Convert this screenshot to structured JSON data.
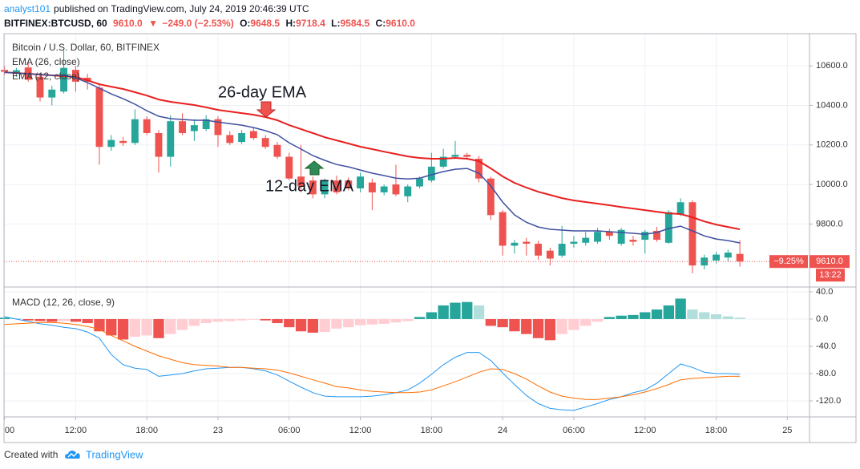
{
  "header": {
    "author": "analyst101",
    "published": "published on TradingView.com, July 24, 2019 20:46:39 UTC",
    "symbol": "BITFINEX:BTCUSD, 60",
    "last": "9610.0",
    "direction": "▼",
    "change": "−249.0 (−2.53%)",
    "ohlc": [
      {
        "label": "O:",
        "value": "9648.5"
      },
      {
        "label": "H:",
        "value": "9718.4"
      },
      {
        "label": "L:",
        "value": "9584.5"
      },
      {
        "label": "C:",
        "value": "9610.0"
      }
    ]
  },
  "footer": {
    "created": "Created with",
    "brand": "TradingView"
  },
  "chart_data": [
    {
      "type": "candlestick",
      "title": "Bitcoin / U.S. Dollar, 60, BITFINEX",
      "open": [
        10580,
        10560,
        10592,
        10545,
        10440,
        10470,
        10580,
        10540,
        10490,
        10190,
        10220,
        10210,
        10330,
        10260,
        10140,
        10320,
        10270,
        10280,
        10330,
        10250,
        10215,
        10270,
        10235,
        10200,
        10140,
        10040,
        10020,
        9950,
        10020,
        10020,
        9980,
        10010,
        9960,
        10000,
        9940,
        9990,
        10020,
        10090,
        10140,
        10150,
        10130,
        10030,
        9860,
        9690,
        9710,
        9700,
        9665,
        9640,
        9700,
        9705,
        9710,
        9760,
        9700,
        9720,
        9720,
        9765,
        9705,
        9850,
        9910,
        9590,
        9615,
        9630,
        9648.5
      ],
      "high": [
        10600,
        10590,
        10615,
        10560,
        10500,
        10680,
        10600,
        10560,
        10510,
        10250,
        10240,
        10380,
        10345,
        10275,
        10350,
        10360,
        10330,
        10350,
        10345,
        10270,
        10275,
        10290,
        10250,
        10215,
        10160,
        10200,
        10040,
        10030,
        10045,
        10035,
        10060,
        10030,
        10000,
        10100,
        10000,
        10040,
        10160,
        10180,
        10220,
        10160,
        10145,
        10040,
        9870,
        9720,
        9730,
        9715,
        9680,
        9790,
        9740,
        9760,
        9780,
        9775,
        9780,
        9740,
        9770,
        9785,
        9870,
        9930,
        9920,
        9645,
        9660,
        9670,
        9718.4
      ],
      "low": [
        10555,
        10545,
        10520,
        10420,
        10400,
        10460,
        10470,
        10480,
        10100,
        10170,
        10195,
        10200,
        10250,
        10060,
        10090,
        10250,
        10220,
        10270,
        10190,
        10200,
        10205,
        10225,
        10180,
        10130,
        10020,
        9960,
        9930,
        9930,
        9950,
        9970,
        9960,
        9870,
        9945,
        9940,
        9910,
        9980,
        10010,
        10080,
        10130,
        10130,
        10010,
        9820,
        9640,
        9650,
        9640,
        9620,
        9590,
        9630,
        9680,
        9690,
        9700,
        9720,
        9690,
        9690,
        9650,
        9710,
        9700,
        9840,
        9550,
        9570,
        9600,
        9610,
        9584.5
      ],
      "close": [
        10570,
        10578,
        10530,
        10440,
        10480,
        10590,
        10520,
        10520,
        10190,
        10225,
        10210,
        10330,
        10260,
        10140,
        10320,
        10260,
        10300,
        10330,
        10250,
        10210,
        10260,
        10235,
        10190,
        10140,
        10030,
        9990,
        9950,
        10020,
        9960,
        9980,
        10040,
        9960,
        9990,
        9950,
        9990,
        10030,
        10090,
        10140,
        10150,
        10140,
        10030,
        9845,
        9690,
        9705,
        9700,
        9640,
        9625,
        9700,
        9710,
        9730,
        9760,
        9740,
        9770,
        9710,
        9760,
        9720,
        9860,
        9910,
        9590,
        9630,
        9645,
        9655,
        9610
      ],
      "up_color": "#26a69a",
      "down_color": "#ef5350",
      "lines": [
        {
          "name": "EMA (26, close)",
          "color": "#e8201f",
          "values": [
            10568,
            10564,
            10560,
            10556,
            10552,
            10548,
            10544,
            10527,
            10507,
            10495,
            10483,
            10467,
            10450,
            10430,
            10418,
            10410,
            10402,
            10390,
            10377,
            10369,
            10361,
            10353,
            10341,
            10325,
            10300,
            10280,
            10260,
            10239,
            10223,
            10207,
            10191,
            10179,
            10166,
            10154,
            10142,
            10134,
            10130,
            10130,
            10134,
            10130,
            10118,
            10081,
            10041,
            10008,
            9984,
            9963,
            9947,
            9931,
            9919,
            9911,
            9903,
            9895,
            9886,
            9878,
            9870,
            9862,
            9854,
            9850,
            9834,
            9813,
            9797,
            9785,
            9773
          ]
        },
        {
          "name": "EMA (12, close)",
          "color": "#3f4fa0",
          "values": [
            10568,
            10564,
            10560,
            10556,
            10552,
            10552,
            10540,
            10515,
            10487,
            10458,
            10434,
            10406,
            10373,
            10345,
            10333,
            10329,
            10325,
            10325,
            10316,
            10308,
            10300,
            10288,
            10272,
            10252,
            10211,
            10179,
            10146,
            10122,
            10101,
            10089,
            10073,
            10057,
            10045,
            10032,
            10028,
            10032,
            10049,
            10065,
            10077,
            10081,
            10057,
            9992,
            9911,
            9846,
            9809,
            9785,
            9773,
            9769,
            9765,
            9765,
            9765,
            9761,
            9757,
            9753,
            9748,
            9757,
            9777,
            9789,
            9765,
            9740,
            9724,
            9716,
            9704
          ]
        }
      ],
      "xlim": [
        -0.04,
        67.87
      ],
      "ylim": [
        9481,
        10763
      ],
      "yticks": [
        {
          "value": 9800,
          "label": "9800.0"
        },
        {
          "value": 10000,
          "label": "10000.0"
        },
        {
          "value": 10200,
          "label": "10200.0"
        },
        {
          "value": 10400,
          "label": "10400.0"
        },
        {
          "value": 10600,
          "label": "10600.0"
        }
      ],
      "grid": true,
      "price_line": {
        "value": 9610,
        "label": "9610.0",
        "change": "−9.25%",
        "countdown": "13:22",
        "color": "#ef5350"
      },
      "annotations": [
        "26-day EMA",
        "12-day EMA"
      ]
    },
    {
      "type": "macd",
      "title": "MACD (12, 26, close, 9)",
      "histogram": [
        2,
        1,
        -2,
        -3,
        -4,
        -3,
        -4,
        -6,
        -18,
        -24,
        -30,
        -26,
        -24,
        -28,
        -22,
        -16,
        -10,
        -6,
        -4,
        -3,
        -2,
        -1,
        -2,
        -6,
        -12,
        -18,
        -20,
        -19,
        -14,
        -12,
        -9,
        -8,
        -7,
        -5,
        -3,
        3,
        10,
        20,
        24,
        25,
        20,
        -10,
        -12,
        -18,
        -22,
        -28,
        -31,
        -22,
        -16,
        -10,
        -4,
        3,
        5,
        6,
        10,
        14,
        20,
        30,
        14,
        10,
        7,
        4,
        2
      ],
      "histogram_colors": [
        "#26a69a",
        "#b2dfdb",
        "#ffcdd2",
        "#ef5350"
      ],
      "series": [
        {
          "color": "#2196f3",
          "values": [
            3.5,
            0,
            -3.5,
            -7,
            -9,
            -12,
            -14,
            -19,
            -28,
            -52,
            -67,
            -72,
            -74,
            -84,
            -82,
            -80,
            -76,
            -73,
            -72,
            -71,
            -71,
            -73,
            -76,
            -82,
            -91,
            -100,
            -108,
            -113,
            -114,
            -114,
            -114,
            -113,
            -111,
            -108,
            -104,
            -94,
            -81,
            -67,
            -56,
            -49,
            -49,
            -61,
            -79,
            -96,
            -112,
            -124,
            -131,
            -133,
            -134,
            -129,
            -124,
            -118,
            -114,
            -108,
            -104,
            -94,
            -80,
            -66,
            -71,
            -78,
            -80,
            -80,
            -81
          ]
        },
        {
          "color": "#ff6d00",
          "values": [
            -8,
            -7,
            -6,
            -5,
            -5,
            -6,
            -8,
            -11,
            -15,
            -24,
            -32,
            -40,
            -47,
            -54,
            -59,
            -64,
            -67,
            -68,
            -69,
            -71,
            -71,
            -72,
            -73,
            -75,
            -79,
            -84,
            -89,
            -94,
            -99,
            -101,
            -104,
            -106,
            -107,
            -108,
            -108,
            -107,
            -104,
            -98,
            -92,
            -85,
            -78,
            -73,
            -74,
            -80,
            -88,
            -98,
            -107,
            -113,
            -116,
            -118,
            -118,
            -116,
            -114,
            -111,
            -107,
            -102,
            -96,
            -89,
            -87,
            -86,
            -85,
            -84,
            -84
          ]
        }
      ],
      "xlim": [
        -0.04,
        67.87
      ],
      "ylim": [
        -143.5,
        47
      ],
      "yticks": [
        {
          "value": -120,
          "label": "-120.0"
        },
        {
          "value": -80,
          "label": "-80.0"
        },
        {
          "value": -40,
          "label": "-40.0"
        },
        {
          "value": 0,
          "label": "0.0"
        },
        {
          "value": 40,
          "label": "40.0"
        }
      ],
      "xticks": [
        {
          "value": 0,
          "label": "00"
        },
        {
          "value": 6,
          "label": "12:00"
        },
        {
          "value": 12,
          "label": "18:00"
        },
        {
          "value": 18,
          "label": "23"
        },
        {
          "value": 24,
          "label": "06:00"
        },
        {
          "value": 30,
          "label": "12:00"
        },
        {
          "value": 36,
          "label": "18:00"
        },
        {
          "value": 42,
          "label": "24"
        },
        {
          "value": 48,
          "label": "06:00"
        },
        {
          "value": 54,
          "label": "12:00"
        },
        {
          "value": 60,
          "label": "18:00"
        },
        {
          "value": 66,
          "label": "25"
        }
      ],
      "grid": true
    }
  ]
}
